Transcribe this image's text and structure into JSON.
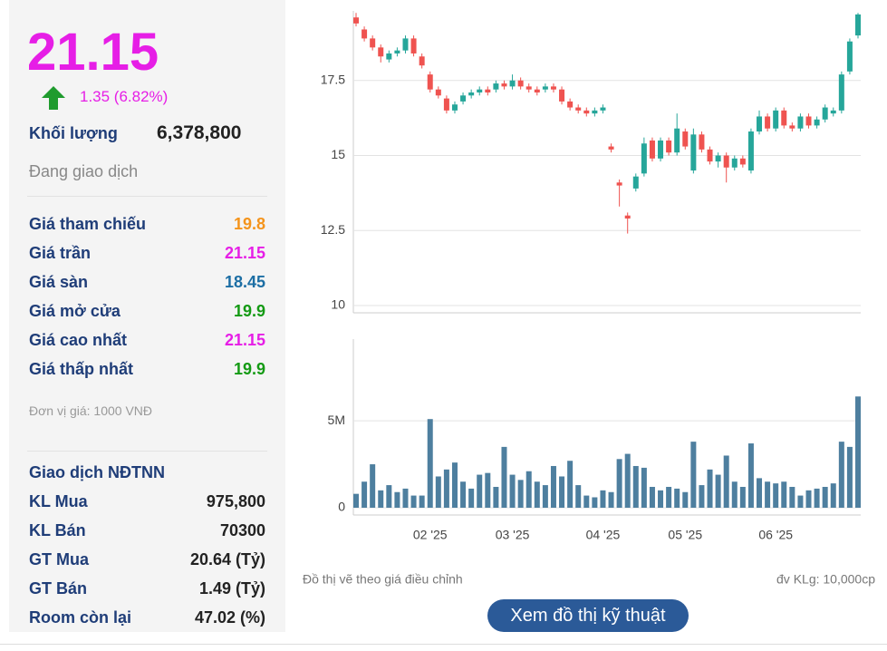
{
  "quote": {
    "price": "21.15",
    "change": "1.35 (6.82%)",
    "volume_label": "Khối lượng",
    "volume": "6,378,800",
    "status": "Đang giao dịch",
    "price_color": "#e61ee6",
    "up_arrow_color": "#1f9b2e"
  },
  "prices": [
    {
      "label": "Giá tham chiếu",
      "value": "19.8",
      "color": "#f4941c"
    },
    {
      "label": "Giá trần",
      "value": "21.15",
      "color": "#e61ee6"
    },
    {
      "label": "Giá sàn",
      "value": "18.45",
      "color": "#1c6ea4"
    },
    {
      "label": "Giá mở cửa",
      "value": "19.9",
      "color": "#149a14"
    },
    {
      "label": "Giá cao nhất",
      "value": "21.15",
      "color": "#e61ee6"
    },
    {
      "label": "Giá thấp nhất",
      "value": "19.9",
      "color": "#149a14"
    }
  ],
  "unit_note": "Đơn vị giá: 1000 VNĐ",
  "foreign": {
    "title": "Giao dịch NĐTNN",
    "rows": [
      {
        "label": "KL Mua",
        "value": "975,800"
      },
      {
        "label": "KL Bán",
        "value": "70300"
      },
      {
        "label": "GT Mua",
        "value": "20.64 (Tỷ)"
      },
      {
        "label": "GT Bán",
        "value": "1.49 (Tỷ)"
      },
      {
        "label": "Room còn lại",
        "value": "47.02 (%)"
      }
    ]
  },
  "footer": {
    "note": "Đồ thị vẽ theo giá điều chỉnh",
    "unit": "đv KLg: 10,000cp"
  },
  "button": "Xem đồ thị kỹ thuật",
  "chart_data": [
    {
      "type": "candlestick",
      "up_color": "#26a69a",
      "down_color": "#ef5350",
      "grid": true,
      "ylim": [
        10,
        20
      ],
      "yticks": [
        10,
        12.5,
        15,
        17.5
      ],
      "open": [
        19.6,
        19.2,
        18.9,
        18.6,
        18.2,
        18.4,
        18.5,
        18.9,
        18.3,
        17.7,
        17.2,
        16.9,
        16.5,
        16.8,
        17.0,
        17.1,
        17.2,
        17.2,
        17.4,
        17.3,
        17.5,
        17.3,
        17.2,
        17.2,
        17.3,
        17.2,
        16.8,
        16.6,
        16.5,
        16.4,
        16.5,
        15.3,
        14.1,
        13.0,
        13.9,
        14.4,
        15.5,
        14.9,
        15.5,
        15.1,
        15.8,
        14.5,
        15.7,
        15.2,
        14.8,
        15.0,
        14.6,
        14.9,
        14.5,
        15.8,
        16.3,
        15.9,
        16.5,
        16.0,
        15.9,
        16.3,
        16.0,
        16.2,
        16.4,
        16.5,
        17.8,
        19.0
      ],
      "close": [
        19.4,
        18.9,
        18.6,
        18.3,
        18.4,
        18.5,
        18.9,
        18.4,
        18.0,
        17.2,
        17.0,
        16.5,
        16.7,
        17.0,
        17.1,
        17.2,
        17.1,
        17.4,
        17.3,
        17.5,
        17.3,
        17.2,
        17.1,
        17.3,
        17.2,
        16.8,
        16.6,
        16.5,
        16.4,
        16.5,
        16.6,
        15.2,
        14.0,
        12.9,
        14.3,
        15.4,
        14.9,
        15.5,
        15.1,
        15.9,
        15.3,
        15.7,
        15.2,
        14.8,
        15.0,
        14.6,
        14.9,
        14.7,
        15.8,
        16.3,
        15.9,
        16.5,
        16.0,
        15.9,
        16.3,
        16.0,
        16.2,
        16.6,
        16.5,
        17.7,
        18.8,
        19.7
      ],
      "high": [
        19.75,
        19.3,
        19.0,
        18.7,
        18.5,
        18.6,
        19.0,
        19.0,
        18.4,
        17.8,
        17.3,
        17.0,
        16.8,
        17.1,
        17.2,
        17.3,
        17.3,
        17.5,
        17.5,
        17.7,
        17.6,
        17.4,
        17.3,
        17.4,
        17.4,
        17.3,
        16.9,
        16.7,
        16.6,
        16.6,
        16.7,
        15.4,
        14.2,
        13.1,
        14.4,
        15.6,
        15.6,
        15.6,
        15.6,
        16.4,
        15.9,
        15.9,
        15.8,
        15.3,
        15.1,
        15.1,
        15.0,
        15.0,
        15.9,
        16.5,
        16.4,
        16.6,
        16.6,
        16.1,
        16.4,
        16.4,
        16.3,
        16.7,
        16.6,
        17.8,
        18.9,
        19.75
      ],
      "low": [
        19.3,
        18.8,
        18.5,
        18.1,
        18.1,
        18.3,
        18.4,
        18.3,
        17.9,
        17.1,
        16.9,
        16.4,
        16.4,
        16.7,
        16.9,
        17.0,
        17.0,
        17.1,
        17.2,
        17.2,
        17.2,
        17.1,
        17.0,
        17.1,
        17.1,
        16.7,
        16.5,
        16.4,
        16.3,
        16.3,
        16.4,
        15.1,
        13.3,
        12.4,
        13.8,
        14.3,
        14.8,
        14.8,
        15.0,
        15.0,
        15.2,
        14.4,
        15.1,
        14.7,
        14.6,
        14.1,
        14.5,
        14.6,
        14.4,
        15.7,
        15.8,
        15.8,
        15.9,
        15.8,
        15.8,
        15.9,
        15.9,
        16.1,
        16.3,
        16.4,
        17.7,
        18.9
      ]
    },
    {
      "type": "bar",
      "color": "#4e7f9f",
      "grid": true,
      "categories": [
        null,
        null,
        null,
        null,
        null,
        null,
        null,
        null,
        null,
        "02 '25",
        null,
        null,
        null,
        null,
        null,
        null,
        null,
        null,
        null,
        "03 '25",
        null,
        null,
        null,
        null,
        null,
        null,
        null,
        null,
        null,
        null,
        "04 '25",
        null,
        null,
        null,
        null,
        null,
        null,
        null,
        null,
        null,
        "05 '25",
        null,
        null,
        null,
        null,
        null,
        null,
        null,
        null,
        null,
        null,
        "06 '25",
        null,
        null,
        null,
        null,
        null,
        null,
        null,
        null,
        null,
        null
      ],
      "ylim": [
        0,
        9700000
      ],
      "yticks": [
        0,
        {
          "value": 5000000,
          "label": "5M"
        }
      ],
      "values": [
        800000,
        1500000,
        2500000,
        1000000,
        1300000,
        900000,
        1100000,
        700000,
        700000,
        5100000,
        1800000,
        2200000,
        2600000,
        1500000,
        1100000,
        1900000,
        2000000,
        1200000,
        3500000,
        1900000,
        1600000,
        2100000,
        1500000,
        1300000,
        2400000,
        1800000,
        2700000,
        1300000,
        700000,
        600000,
        1000000,
        900000,
        2800000,
        3100000,
        2400000,
        2300000,
        1200000,
        1000000,
        1200000,
        1100000,
        900000,
        3800000,
        1300000,
        2200000,
        1900000,
        3000000,
        1500000,
        1200000,
        3700000,
        1700000,
        1500000,
        1400000,
        1500000,
        1200000,
        700000,
        1000000,
        1100000,
        1200000,
        1400000,
        3800000,
        3500000,
        6400000
      ]
    }
  ]
}
